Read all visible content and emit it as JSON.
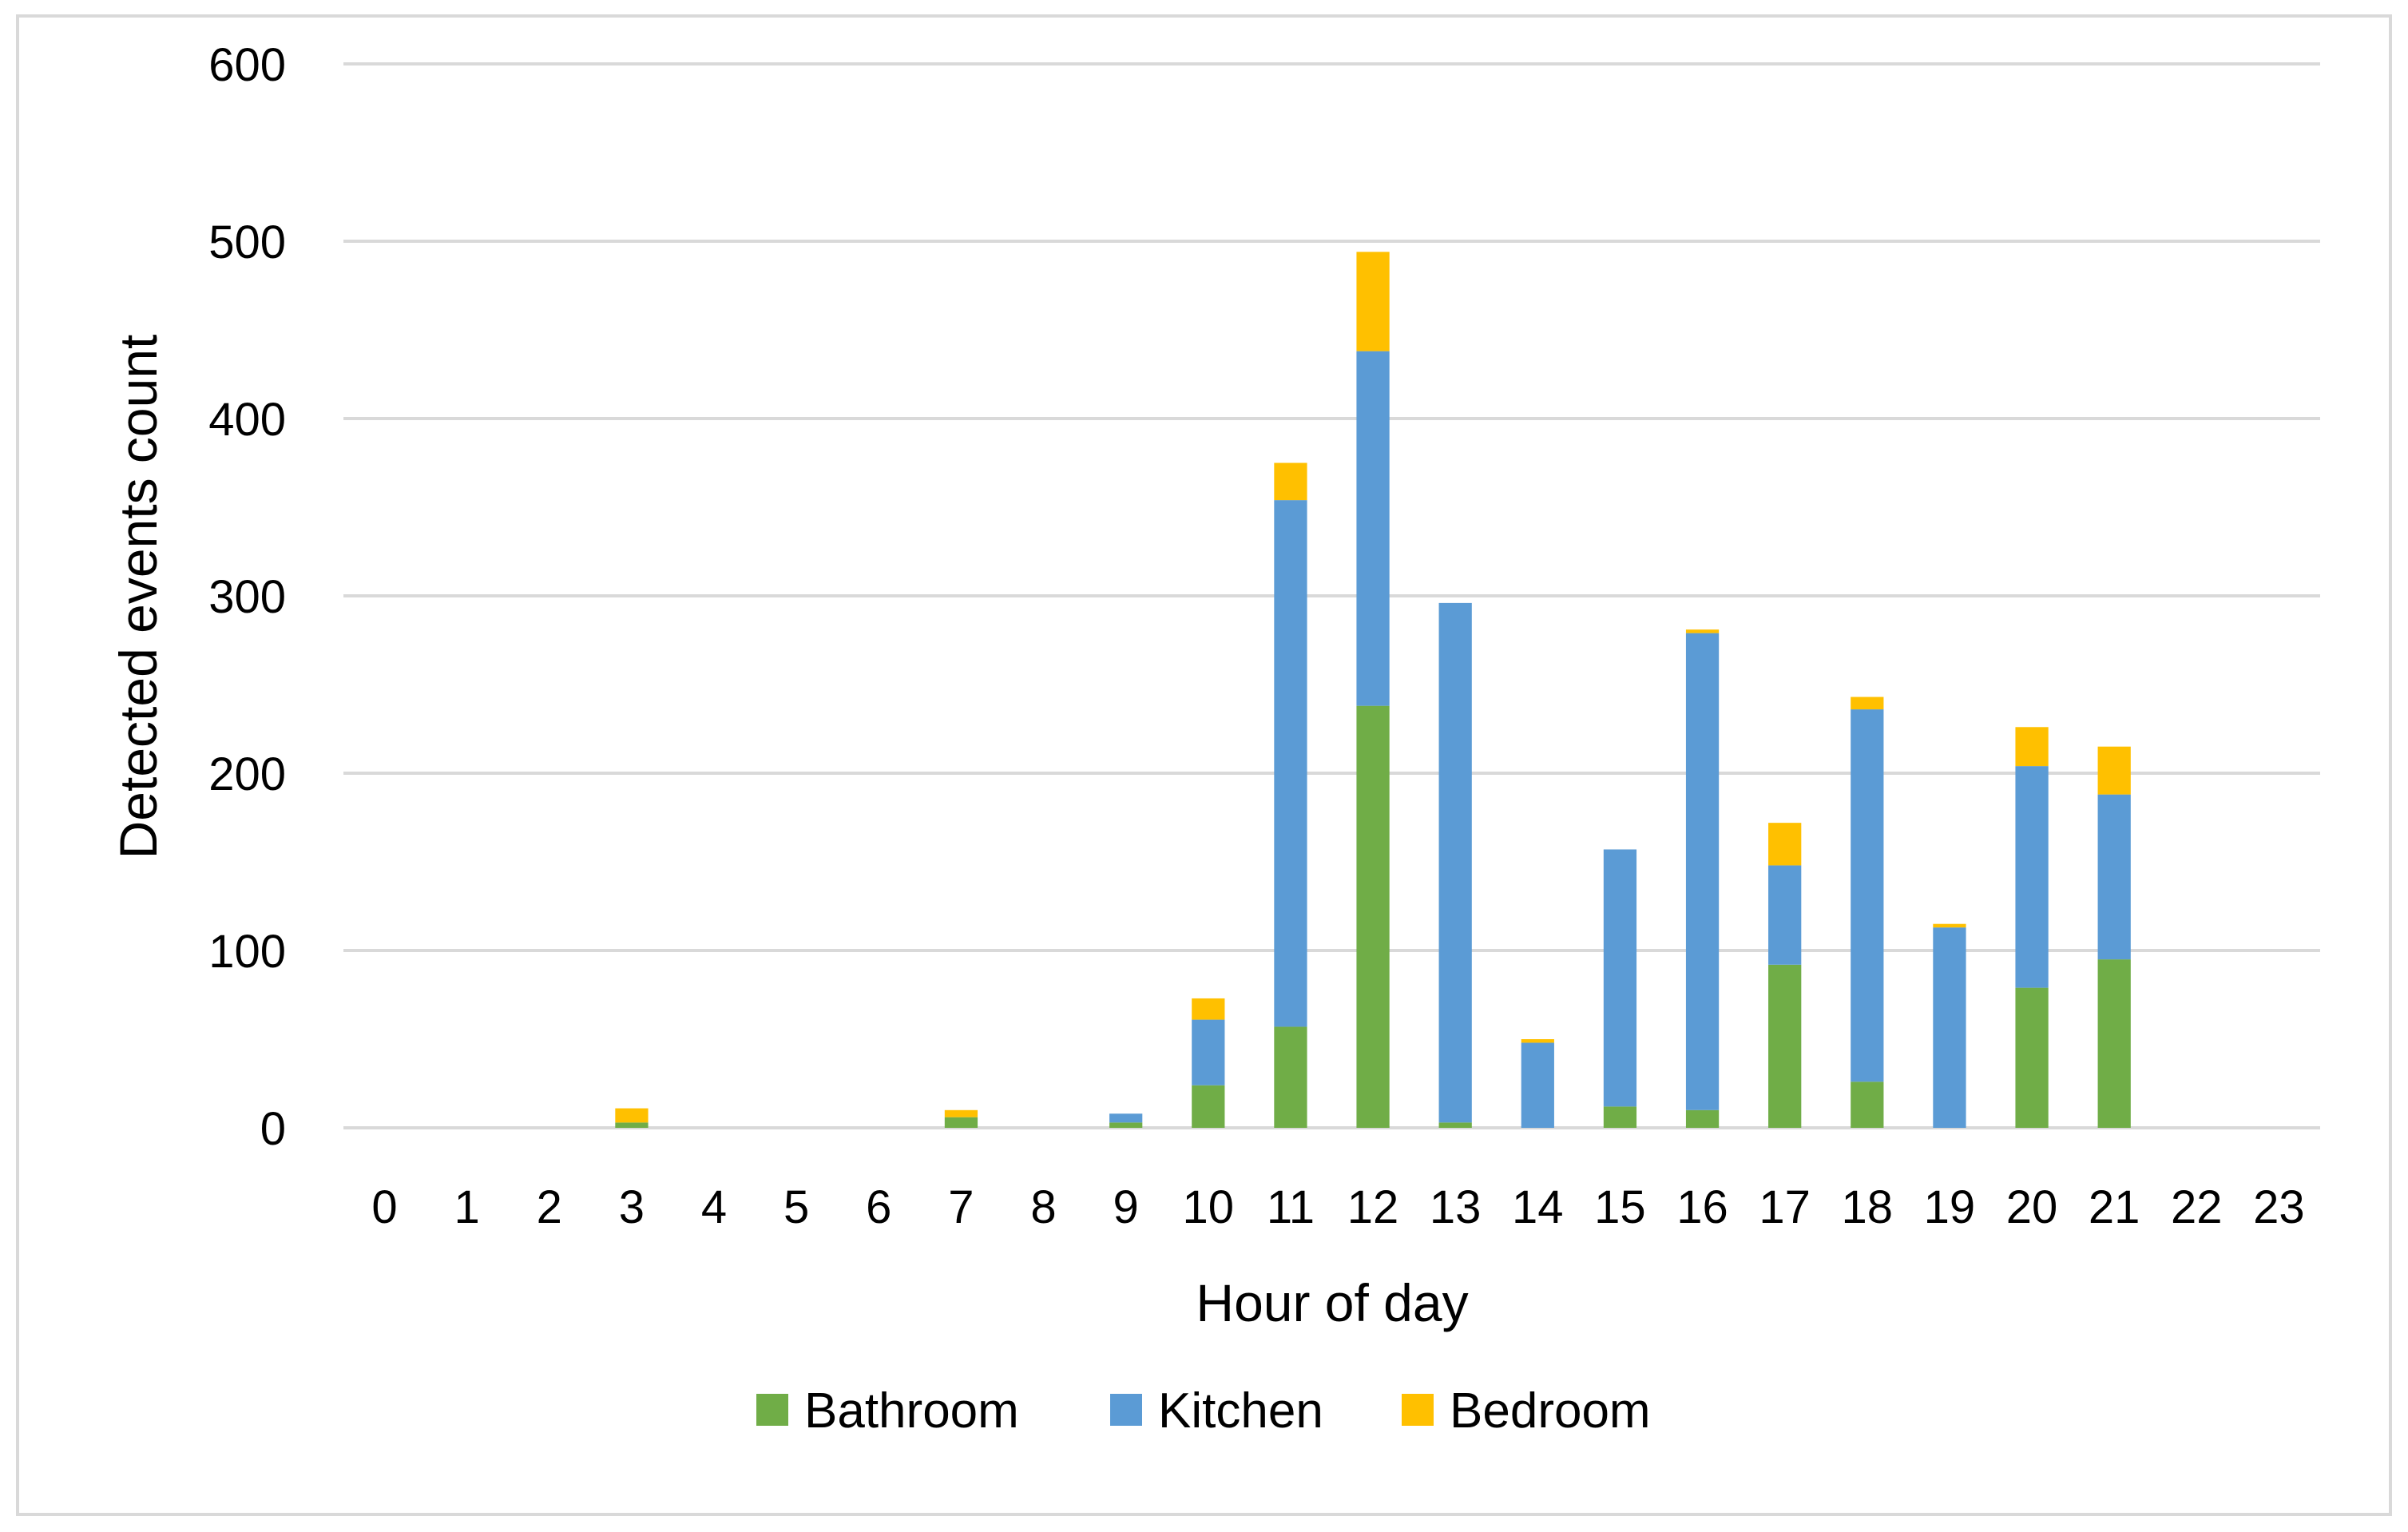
{
  "chart_data": {
    "type": "bar",
    "stacked": true,
    "title": "",
    "xlabel": "Hour of day",
    "ylabel": "Detected events count",
    "ylim": [
      0,
      600
    ],
    "yticks": [
      "0",
      "100",
      "200",
      "300",
      "400",
      "500",
      "600"
    ],
    "grid": true,
    "legend_position": "bottom",
    "categories": [
      "0",
      "1",
      "2",
      "3",
      "4",
      "5",
      "6",
      "7",
      "8",
      "9",
      "10",
      "11",
      "12",
      "13",
      "14",
      "15",
      "16",
      "17",
      "18",
      "19",
      "20",
      "21",
      "22",
      "23"
    ],
    "series": [
      {
        "name": "Bathroom",
        "color": "#70ad47",
        "values": [
          0,
          0,
          0,
          3,
          0,
          0,
          0,
          6,
          0,
          3,
          24,
          57,
          238,
          3,
          0,
          12,
          10,
          92,
          26,
          0,
          79,
          95,
          0,
          0
        ]
      },
      {
        "name": "Kitchen",
        "color": "#5b9bd5",
        "values": [
          0,
          0,
          0,
          0,
          0,
          0,
          0,
          0,
          0,
          5,
          37,
          297,
          200,
          293,
          48,
          145,
          269,
          56,
          210,
          113,
          125,
          93,
          0,
          0
        ]
      },
      {
        "name": "Bedroom",
        "color": "#ffc000",
        "values": [
          0,
          0,
          0,
          8,
          0,
          0,
          0,
          4,
          0,
          0,
          12,
          21,
          56,
          0,
          2,
          0,
          2,
          24,
          7,
          2,
          22,
          27,
          0,
          0
        ]
      }
    ]
  }
}
